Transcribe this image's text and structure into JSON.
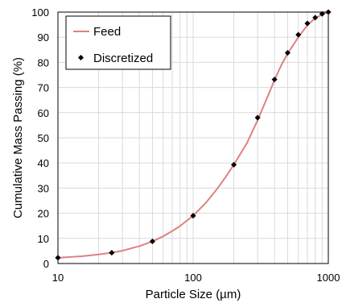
{
  "chart_data": {
    "type": "line",
    "xscale": "log",
    "xlim": [
      10,
      1000
    ],
    "ylim": [
      0,
      100
    ],
    "xticks": [
      "10",
      "100",
      "1000"
    ],
    "yticks": [
      "0",
      "10",
      "20",
      "30",
      "40",
      "50",
      "60",
      "70",
      "80",
      "90",
      "100"
    ],
    "xlabel": "Particle Size (µm)",
    "ylabel": "Cumulative Mass Passing (%)",
    "grid": true,
    "legend_position": "top-left",
    "series": [
      {
        "name": "Feed",
        "style": "line",
        "color": "#e08080",
        "x": [
          10,
          15,
          20,
          25,
          30,
          40,
          50,
          60,
          70,
          80,
          100,
          125,
          150,
          175,
          200,
          250,
          300,
          350,
          400,
          450,
          500,
          600,
          700,
          800,
          900,
          1000
        ],
        "y": [
          2.3,
          2.9,
          3.6,
          4.3,
          5.1,
          6.9,
          8.8,
          10.8,
          12.9,
          14.9,
          19.0,
          24.3,
          29.6,
          34.6,
          39.3,
          47.9,
          57.0,
          65.5,
          73.0,
          79.0,
          83.5,
          90.0,
          94.8,
          97.6,
          99.0,
          100
        ]
      },
      {
        "name": "Discretized",
        "style": "markers",
        "color": "#000000",
        "x": [
          10,
          25,
          50,
          100,
          200,
          300,
          400,
          500,
          600,
          700,
          800,
          900,
          1000
        ],
        "y": [
          2.3,
          4.3,
          8.8,
          19.0,
          39.3,
          58.0,
          73.2,
          83.8,
          91.0,
          95.5,
          97.8,
          99.3,
          100
        ]
      }
    ]
  }
}
